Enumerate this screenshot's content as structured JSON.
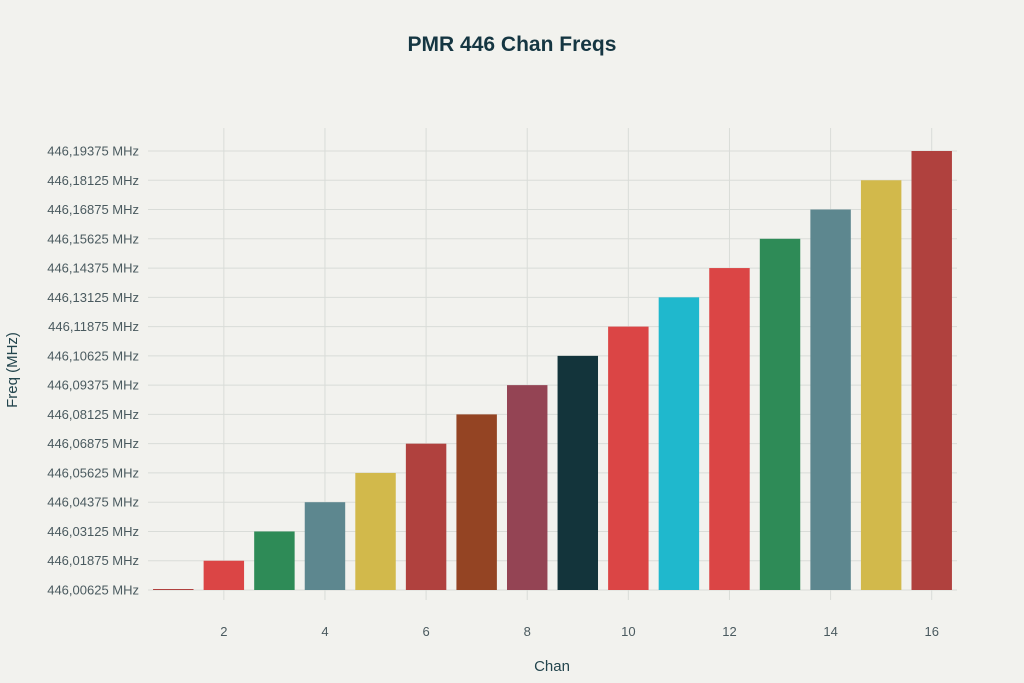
{
  "chart_data": {
    "type": "bar",
    "title": "PMR 446 Chan Freqs",
    "xlabel": "Chan",
    "ylabel": "Freq (MHz)",
    "x": [
      1,
      2,
      3,
      4,
      5,
      6,
      7,
      8,
      9,
      10,
      11,
      12,
      13,
      14,
      15,
      16
    ],
    "values": [
      446.00625,
      446.01875,
      446.03125,
      446.04375,
      446.05625,
      446.06875,
      446.08125,
      446.09375,
      446.10625,
      446.11875,
      446.13125,
      446.14375,
      446.15625,
      446.16875,
      446.18125,
      446.19375
    ],
    "colors": [
      "#b0413e",
      "#db4545",
      "#2e8b57",
      "#5d878f",
      "#d2b94b",
      "#b0413e",
      "#944423",
      "#944454",
      "#13343b",
      "#db4545",
      "#1fb8cd",
      "#db4545",
      "#2e8b57",
      "#5d878f",
      "#d2b94b",
      "#b0413e"
    ],
    "x_ticks": [
      "2",
      "4",
      "6",
      "8",
      "10",
      "12",
      "14",
      "16"
    ],
    "y_ticks": [
      "446,00625 MHz",
      "446,01875 MHz",
      "446,03125 MHz",
      "446,04375 MHz",
      "446,05625 MHz",
      "446,06875 MHz",
      "446,08125 MHz",
      "446,09375 MHz",
      "446,10625 MHz",
      "446,11875 MHz",
      "446,13125 MHz",
      "446,14375 MHz",
      "446,15625 MHz",
      "446,16875 MHz",
      "446,18125 MHz",
      "446,19375 MHz"
    ],
    "ylim": [
      446.00625,
      446.19375
    ],
    "xlim": [
      0.5,
      16.5
    ],
    "grid": true,
    "legend": false
  }
}
